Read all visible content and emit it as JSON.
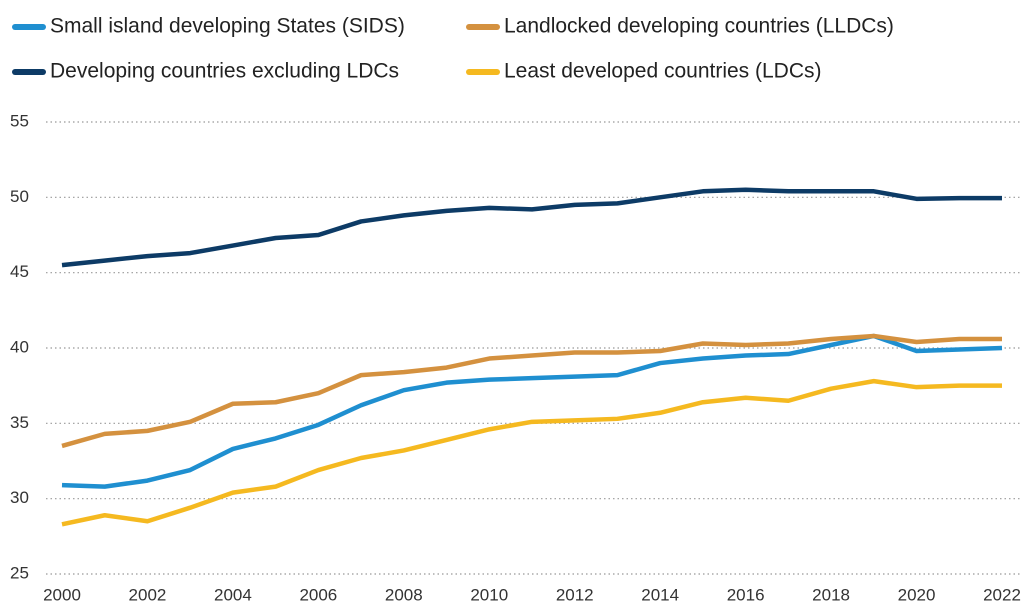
{
  "chart_data": {
    "type": "line",
    "x": [
      2000,
      2001,
      2002,
      2003,
      2004,
      2005,
      2006,
      2007,
      2008,
      2009,
      2010,
      2011,
      2012,
      2013,
      2014,
      2015,
      2016,
      2017,
      2018,
      2019,
      2020,
      2021,
      2022
    ],
    "series": [
      {
        "name": "Small island developing States (SIDS)",
        "color": "#1f8fd0",
        "values": [
          30.9,
          30.8,
          31.2,
          31.9,
          33.3,
          34.0,
          34.9,
          36.2,
          37.2,
          37.7,
          37.9,
          38.0,
          38.1,
          38.2,
          39.0,
          39.3,
          39.5,
          39.6,
          40.2,
          40.8,
          39.8,
          39.9,
          40.0
        ]
      },
      {
        "name": "Landlocked developing countries (LLDCs)",
        "color": "#d4913f",
        "values": [
          33.5,
          34.3,
          34.5,
          35.1,
          36.3,
          36.4,
          37.0,
          38.2,
          38.4,
          38.7,
          39.3,
          39.5,
          39.7,
          39.7,
          39.8,
          40.3,
          40.2,
          40.3,
          40.6,
          40.8,
          40.4,
          40.6,
          40.6
        ]
      },
      {
        "name": "Developing countries excluding LDCs",
        "color": "#0d3b66",
        "values": [
          45.5,
          45.8,
          46.1,
          46.3,
          46.8,
          47.3,
          47.5,
          48.4,
          48.8,
          49.1,
          49.3,
          49.2,
          49.5,
          49.6,
          50.0,
          50.4,
          50.5,
          50.4,
          50.4,
          50.4,
          49.9,
          49.95,
          49.95
        ]
      },
      {
        "name": "Least developed countries (LDCs)",
        "color": "#f5b920",
        "values": [
          28.3,
          28.9,
          28.5,
          29.4,
          30.4,
          30.8,
          31.9,
          32.7,
          33.2,
          33.9,
          34.6,
          35.1,
          35.2,
          35.3,
          35.7,
          36.4,
          36.7,
          36.5,
          37.3,
          37.8,
          37.4,
          37.5,
          37.5
        ]
      }
    ],
    "xlim": [
      2000,
      2022
    ],
    "xticks": [
      2000,
      2002,
      2004,
      2006,
      2008,
      2010,
      2012,
      2014,
      2016,
      2018,
      2020,
      2022
    ],
    "ylim": [
      25,
      55
    ],
    "yticks": [
      25,
      30,
      35,
      40,
      45,
      50,
      55
    ],
    "grid": true
  }
}
